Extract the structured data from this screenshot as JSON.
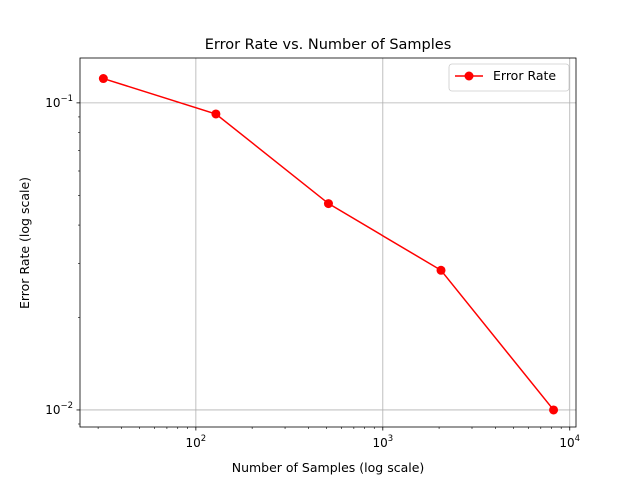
{
  "chart_data": {
    "type": "line",
    "title": "Error Rate vs. Number of Samples",
    "xlabel": "Number of Samples (log scale)",
    "ylabel": "Error Rate (log scale)",
    "xscale": "log",
    "yscale": "log",
    "xlim": [
      24,
      10800
    ],
    "ylim": [
      0.0088,
      0.14
    ],
    "grid": true,
    "legend_position": "top-right",
    "series": [
      {
        "name": "Error Rate",
        "color": "#ff0000",
        "marker": "circle",
        "x": [
          32,
          128,
          512,
          2048,
          8192
        ],
        "y": [
          0.12,
          0.092,
          0.047,
          0.0285,
          0.01
        ]
      }
    ],
    "x_ticks": [
      {
        "value": 100,
        "base": "10",
        "exp": "2"
      },
      {
        "value": 1000,
        "base": "10",
        "exp": "3"
      },
      {
        "value": 10000,
        "base": "10",
        "exp": "4"
      }
    ],
    "y_ticks": [
      {
        "value": 0.01,
        "base": "10",
        "exp": "−2"
      },
      {
        "value": 0.1,
        "base": "10",
        "exp": "−1"
      }
    ]
  }
}
